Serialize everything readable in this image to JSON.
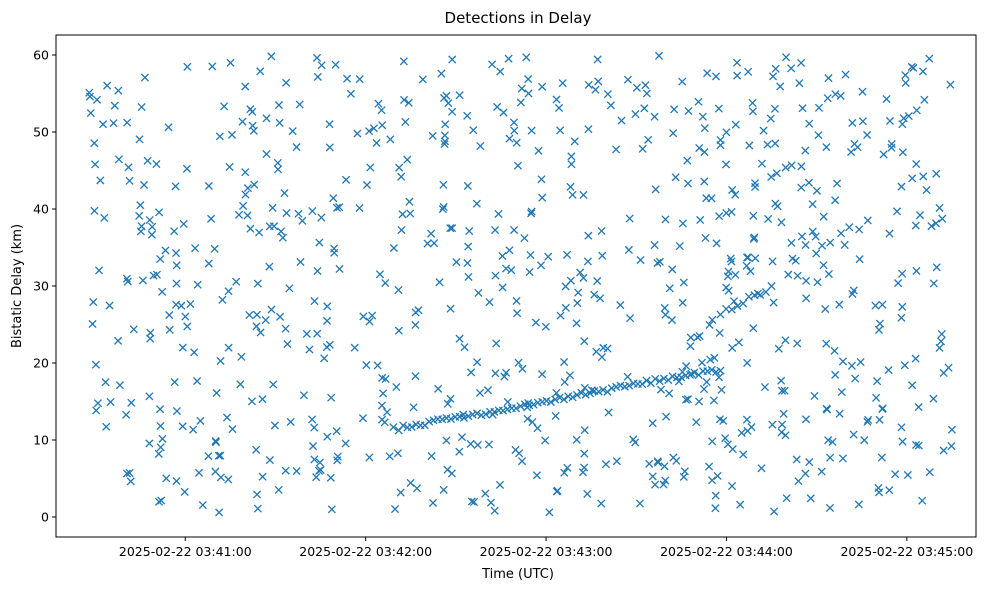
{
  "chart_data": {
    "type": "scatter",
    "title": "Detections in Delay",
    "xlabel": "Time (UTC)",
    "ylabel": "Bistatic Delay (km)",
    "marker": "x",
    "color": "#1f77b4",
    "grid": false,
    "xlim": [
      "2025-02-22 03:40:17",
      "2025-02-22 03:45:23"
    ],
    "ylim": [
      -2.6,
      62.6
    ],
    "xticks": [
      "2025-02-22 03:41:00",
      "2025-02-22 03:42:00",
      "2025-02-22 03:43:00",
      "2025-02-22 03:44:00",
      "2025-02-22 03:45:00"
    ],
    "yticks": [
      "0",
      "10",
      "20",
      "30",
      "40",
      "50",
      "60"
    ],
    "seed": 20250222,
    "clutter": {
      "count": 820,
      "x_range": [
        "2025-02-22 03:40:28",
        "2025-02-22 03:45:15"
      ],
      "y_range": [
        0.5,
        60
      ]
    },
    "tracks": [
      {
        "start": "2025-02-22 03:42:11",
        "end": "2025-02-22 03:43:58",
        "y_start": 11.5,
        "y_end": 19.2,
        "count": 75
      },
      {
        "start": "2025-02-22 03:43:58",
        "end": "2025-02-22 03:44:15",
        "y_start": 26.5,
        "y_end": 29.8,
        "count": 10
      }
    ]
  }
}
